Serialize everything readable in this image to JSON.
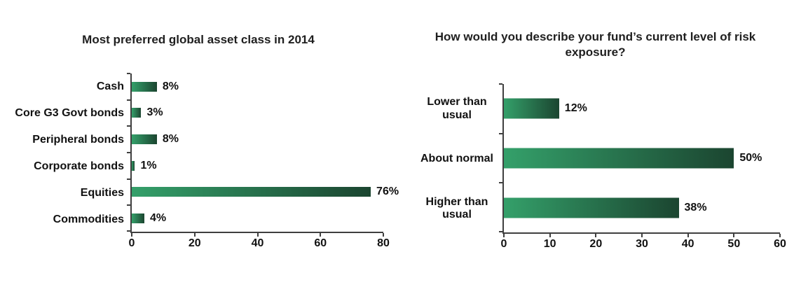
{
  "page": {
    "background": "#ffffff",
    "text_color": "#111111",
    "axis_color": "#3f3f3f"
  },
  "chart_data": [
    {
      "type": "bar",
      "orientation": "horizontal",
      "title": "Most preferred global asset class in 2014",
      "categories": [
        "Cash",
        "Core G3 Govt bonds",
        "Peripheral bonds",
        "Corporate bonds",
        "Equities",
        "Commodities"
      ],
      "values": [
        8,
        3,
        8,
        1,
        76,
        4
      ],
      "value_labels": [
        "8%",
        "3%",
        "8%",
        "1%",
        "76%",
        "4%"
      ],
      "xlim": [
        0,
        80
      ],
      "xtick_values": [
        0,
        20,
        40,
        60,
        80
      ],
      "xtick_labels": [
        "0",
        "20",
        "40",
        "60",
        "80"
      ],
      "grid": false,
      "legend": "none",
      "bar_gradient_start": "#34A06A",
      "bar_gradient_end": "#1B4530"
    },
    {
      "type": "bar",
      "orientation": "horizontal",
      "title": "How would you describe your fund’s current level of risk exposure?",
      "categories": [
        "Lower than usual",
        "About normal",
        "Higher than usual"
      ],
      "values": [
        12,
        50,
        38
      ],
      "value_labels": [
        "12%",
        "50%",
        "38%"
      ],
      "xlim": [
        0,
        60
      ],
      "xtick_values": [
        0,
        10,
        20,
        30,
        40,
        50,
        60
      ],
      "xtick_labels": [
        "0",
        "10",
        "20",
        "30",
        "40",
        "50",
        "60"
      ],
      "grid": false,
      "legend": "none",
      "bar_gradient_start": "#34A06A",
      "bar_gradient_end": "#1B4530"
    }
  ]
}
